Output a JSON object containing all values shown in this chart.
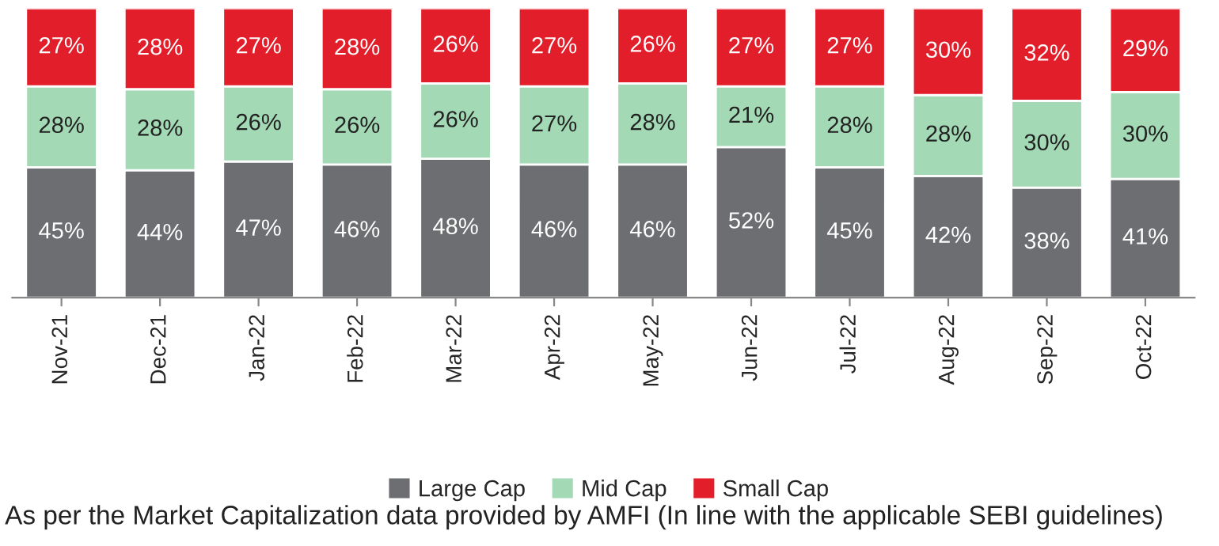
{
  "chart_data": {
    "type": "bar",
    "stacked": true,
    "legend": "bottom",
    "categories": [
      "Nov-21",
      "Dec-21",
      "Jan-22",
      "Feb-22",
      "Mar-22",
      "Apr-22",
      "May-22",
      "Jun-22",
      "Jul-22",
      "Aug-22",
      "Sep-22",
      "Oct-22"
    ],
    "series": [
      {
        "name": "Large Cap",
        "color": "#6d6e71",
        "values": [
          45,
          44,
          47,
          46,
          48,
          46,
          46,
          52,
          45,
          42,
          38,
          41
        ],
        "value_labels": [
          "45%",
          "44%",
          "47%",
          "46%",
          "48%",
          "46%",
          "46%",
          "52%",
          "45%",
          "42%",
          "38%",
          "41%"
        ]
      },
      {
        "name": "Mid Cap",
        "color": "#a3d9b5",
        "values": [
          28,
          28,
          26,
          26,
          26,
          27,
          28,
          21,
          28,
          28,
          30,
          30
        ],
        "value_labels": [
          "28%",
          "28%",
          "26%",
          "26%",
          "26%",
          "27%",
          "28%",
          "21%",
          "28%",
          "28%",
          "30%",
          "30%"
        ]
      },
      {
        "name": "Small Cap",
        "color": "#e31e2b",
        "values": [
          27,
          28,
          27,
          28,
          26,
          27,
          26,
          27,
          27,
          30,
          32,
          29
        ],
        "value_labels": [
          "27%",
          "28%",
          "27%",
          "28%",
          "26%",
          "27%",
          "26%",
          "27%",
          "27%",
          "30%",
          "32%",
          "29%"
        ]
      }
    ],
    "annotations": [
      "As per the Market Capitalization data provided by AMFI (In line with the applicable SEBI guidelines)"
    ]
  }
}
